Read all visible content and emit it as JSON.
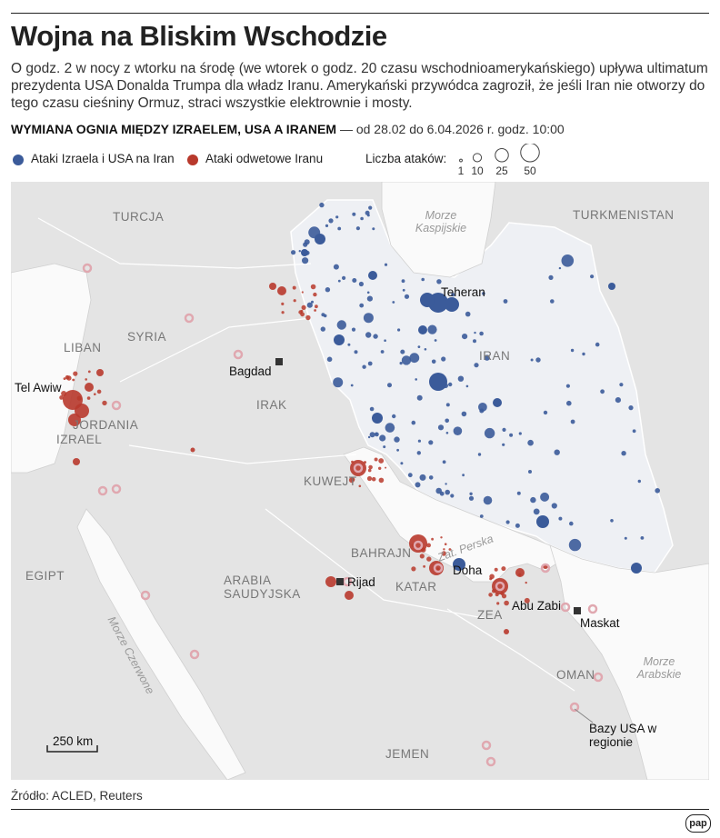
{
  "header": {
    "title": "Wojna na Bliskim Wschodzie",
    "lead": "O godz. 2 w nocy z wtorku na środę (we wtorek o godz. 20 czasu wschodnioamerykańskiego) upływa ultimatum prezydenta USA Donalda Trumpa dla władz Iranu. Amerykański przywódca zagroził, że jeśli Iran nie otworzy do tego czasu cieśniny Ormuz, straci wszystkie elektrownie i mosty.",
    "subtitle_bold": "WYMIANA OGNIA MIĘDZY IZRAELEM, USA A IRANEM",
    "subtitle_rest": "— od 28.02 do 6.04.2026 r. godz. 10:00"
  },
  "legend": {
    "items": [
      {
        "label": "Ataki Izraela i USA na Iran",
        "color": "#3b5b9a"
      },
      {
        "label": "Ataki odwetowe Iranu",
        "color": "#b8392c"
      }
    ],
    "size_title": "Liczba ataków:",
    "sizes": [
      1,
      10,
      25,
      50
    ]
  },
  "map": {
    "labels": [
      "TURCJA",
      "TURKMENISTAN",
      "Morze Kaspijskie",
      "SYRIA",
      "LIBAN",
      "Tel Awiw",
      "JORDANIA",
      "IZRAEL",
      "IRAK",
      "Bagdad",
      "Teheran",
      "IRAN",
      "KUWEJT",
      "BAHRAJN",
      "Zat. Perska",
      "Doha",
      "KATAR",
      "Rijad",
      "ARABIA SAUDYJSKA",
      "EGIPT",
      "Morze Czerwone",
      "ZEA",
      "Abu Zabi",
      "Maskat",
      "OMAN",
      "Morze Arabskie",
      "JEMEN",
      "Bazy USA w regionie"
    ],
    "scale_label": "250 km"
  },
  "footer": {
    "source": "Źródło: ACLED, Reuters",
    "logo": "pap"
  }
}
